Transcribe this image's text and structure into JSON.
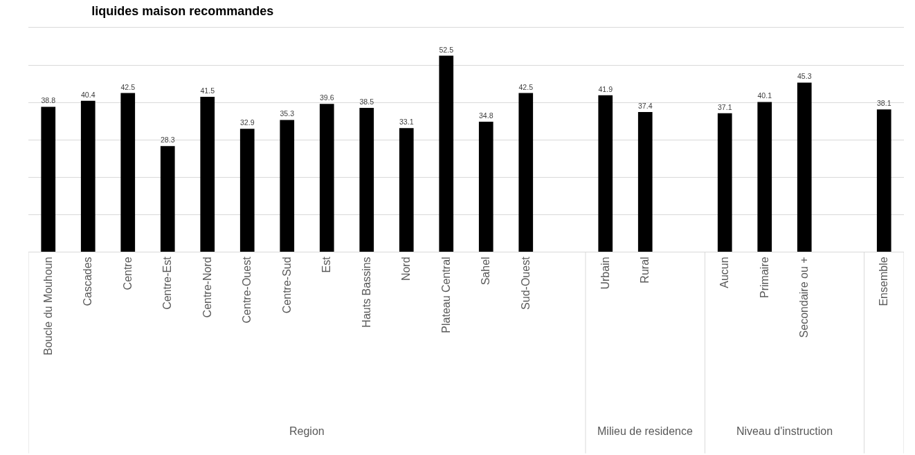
{
  "chart_data": {
    "type": "bar",
    "title": "liquides maison recommandes",
    "categories": [
      "Boucle du Mouhoun",
      "Cascades",
      "Centre",
      "Centre-Est",
      "Centre-Nord",
      "Centre-Ouest",
      "Centre-Sud",
      "Est",
      "Hauts Bassins",
      "Nord",
      "Plateau Central",
      "Sahel",
      "Sud-Ouest",
      null,
      "Urbain",
      "Rural",
      null,
      "Aucun",
      "Primaire",
      "Secondaire ou +",
      null,
      "Ensemble"
    ],
    "values": [
      38.8,
      40.4,
      42.5,
      28.3,
      41.5,
      32.9,
      35.3,
      39.6,
      38.5,
      33.1,
      52.5,
      34.8,
      42.5,
      null,
      41.9,
      37.4,
      null,
      37.1,
      40.1,
      45.3,
      null,
      38.1
    ],
    "color": "#000000",
    "data_labels": true,
    "ylim": [
      0,
      60
    ],
    "yticks": [
      {
        "value": 0,
        "label": null
      },
      {
        "value": 10,
        "label": null
      },
      {
        "value": 20,
        "label": null
      },
      {
        "value": 30,
        "label": null
      },
      {
        "value": 40,
        "label": null
      },
      {
        "value": 50,
        "label": null
      },
      {
        "value": 60,
        "label": null
      }
    ],
    "grid": "y",
    "tick_labels": "x",
    "annotations": [
      "Region",
      "Milieu de residence",
      "Niveau d'instruction"
    ]
  }
}
